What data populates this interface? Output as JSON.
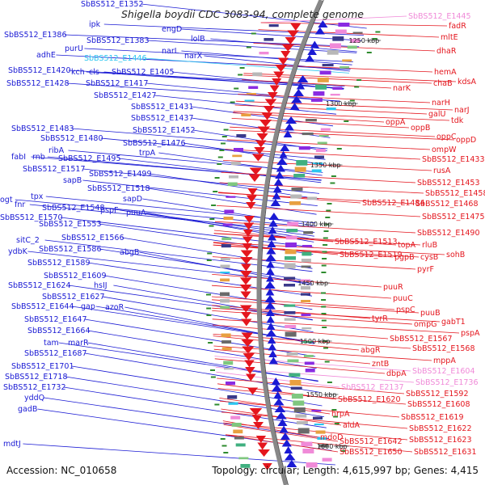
{
  "title": "Shigella boydii CDC 3083-94, complete genome",
  "footer": {
    "accession": "Accession: NC_010658",
    "summary": "Topology: circular; Length: 4,615,997 bp; Genes: 4,415"
  },
  "colors": {
    "minus_strand": "#1a1ad4",
    "plus_strand": "#e4161e",
    "rna": "#2bc6f0",
    "pseudo": "#f08ad8",
    "backbone": "#888888"
  },
  "ticks": [
    {
      "label": "1250 kbp"
    },
    {
      "label": "1300 kbp"
    },
    {
      "label": "1350 kbp"
    },
    {
      "label": "1400 kbp"
    },
    {
      "label": "1450 kbp"
    },
    {
      "label": "1500 kbp"
    },
    {
      "label": "1550 kbp"
    },
    {
      "label": "1600 kbp"
    }
  ],
  "left_labels": [
    {
      "text": "SbBS512_E1352",
      "kind": "gene"
    },
    {
      "text": "ipk",
      "kind": "gene"
    },
    {
      "text": "engD",
      "kind": "gene"
    },
    {
      "text": "SbBS512_E1386",
      "kind": "gene"
    },
    {
      "text": "SbBS512_E1383",
      "kind": "gene"
    },
    {
      "text": "lolB",
      "kind": "gene"
    },
    {
      "text": "purU",
      "kind": "gene"
    },
    {
      "text": "narL",
      "kind": "gene"
    },
    {
      "text": "adhE",
      "kind": "gene"
    },
    {
      "text": "SbBS512_E1446",
      "kind": "rna"
    },
    {
      "text": "narX",
      "kind": "gene"
    },
    {
      "text": "SbBS512_E1420",
      "kind": "gene"
    },
    {
      "text": "kch",
      "kind": "gene"
    },
    {
      "text": "cls",
      "kind": "gene"
    },
    {
      "text": "SbBS512_E1405",
      "kind": "gene"
    },
    {
      "text": "SbBS512_E1428",
      "kind": "gene"
    },
    {
      "text": "SbBS512_E1417",
      "kind": "gene"
    },
    {
      "text": "SbBS512_E1427",
      "kind": "gene"
    },
    {
      "text": "SbBS512_E1431",
      "kind": "gene"
    },
    {
      "text": "SbBS512_E1437",
      "kind": "gene"
    },
    {
      "text": "SbBS512_E1483",
      "kind": "gene"
    },
    {
      "text": "SbBS512_E1452",
      "kind": "gene"
    },
    {
      "text": "SbBS512_E1480",
      "kind": "gene"
    },
    {
      "text": "SbBS512_E1476",
      "kind": "gene"
    },
    {
      "text": "ribA",
      "kind": "gene"
    },
    {
      "text": "trpA",
      "kind": "gene"
    },
    {
      "text": "fabI",
      "kind": "gene"
    },
    {
      "text": "rnb",
      "kind": "gene"
    },
    {
      "text": "SbBS512_E1495",
      "kind": "gene"
    },
    {
      "text": "SbBS512_E1517",
      "kind": "gene"
    },
    {
      "text": "SbBS512_E1499",
      "kind": "gene"
    },
    {
      "text": "sapB",
      "kind": "gene"
    },
    {
      "text": "SbBS512_E1518",
      "kind": "gene"
    },
    {
      "text": "tpx",
      "kind": "gene"
    },
    {
      "text": "sapD",
      "kind": "gene"
    },
    {
      "text": "ogt",
      "kind": "gene"
    },
    {
      "text": "fnr",
      "kind": "gene"
    },
    {
      "text": "SbBS512_E1548",
      "kind": "gene"
    },
    {
      "text": "pspF",
      "kind": "gene"
    },
    {
      "text": "puuA",
      "kind": "gene"
    },
    {
      "text": "SbBS512_E1570",
      "kind": "gene"
    },
    {
      "text": "SbBS512_E1553",
      "kind": "gene"
    },
    {
      "text": "SbBS512_E1566",
      "kind": "gene"
    },
    {
      "text": "sitC_2",
      "kind": "gene"
    },
    {
      "text": "ydbK",
      "kind": "gene"
    },
    {
      "text": "SbBS512_E1586",
      "kind": "gene"
    },
    {
      "text": "abgB",
      "kind": "gene"
    },
    {
      "text": "SbBS512_E1589",
      "kind": "gene"
    },
    {
      "text": "SbBS512_E1609",
      "kind": "gene"
    },
    {
      "text": "SbBS512_E1624",
      "kind": "gene"
    },
    {
      "text": "hsIJ",
      "kind": "gene"
    },
    {
      "text": "SbBS512_E1627",
      "kind": "gene"
    },
    {
      "text": "SbBS512_E1644",
      "kind": "gene"
    },
    {
      "text": "gap",
      "kind": "gene"
    },
    {
      "text": "azoR",
      "kind": "gene"
    },
    {
      "text": "SbBS512_E1647",
      "kind": "gene"
    },
    {
      "text": "SbBS512_E1664",
      "kind": "gene"
    },
    {
      "text": "tam",
      "kind": "gene"
    },
    {
      "text": "marR",
      "kind": "gene"
    },
    {
      "text": "SbBS512_E1687",
      "kind": "gene"
    },
    {
      "text": "SbBS512_E1701",
      "kind": "gene"
    },
    {
      "text": "SbBS512_E1718",
      "kind": "gene"
    },
    {
      "text": "SbBS512_E1732",
      "kind": "gene"
    },
    {
      "text": "yddQ",
      "kind": "gene"
    },
    {
      "text": "gadB",
      "kind": "gene"
    },
    {
      "text": "mdtJ",
      "kind": "gene"
    }
  ],
  "right_labels": [
    {
      "text": "SbBS512_E1445",
      "kind": "pseudo"
    },
    {
      "text": "fadR",
      "kind": "gene"
    },
    {
      "text": "mltE",
      "kind": "gene"
    },
    {
      "text": "dhaR",
      "kind": "gene"
    },
    {
      "text": "hemA",
      "kind": "gene"
    },
    {
      "text": "chaB",
      "kind": "gene"
    },
    {
      "text": "kdsA",
      "kind": "gene"
    },
    {
      "text": "narK",
      "kind": "gene"
    },
    {
      "text": "narH",
      "kind": "gene"
    },
    {
      "text": "narJ",
      "kind": "gene"
    },
    {
      "text": "galU",
      "kind": "gene"
    },
    {
      "text": "tdk",
      "kind": "gene"
    },
    {
      "text": "oppA",
      "kind": "gene"
    },
    {
      "text": "oppB",
      "kind": "gene"
    },
    {
      "text": "oppC",
      "kind": "gene"
    },
    {
      "text": "oppD",
      "kind": "gene"
    },
    {
      "text": "ompW",
      "kind": "gene"
    },
    {
      "text": "SbBS512_E1433",
      "kind": "gene"
    },
    {
      "text": "rusA",
      "kind": "gene"
    },
    {
      "text": "SbBS512_E1453",
      "kind": "gene"
    },
    {
      "text": "SbBS512_E1458",
      "kind": "gene"
    },
    {
      "text": "SbBS512_E1484",
      "kind": "gene"
    },
    {
      "text": "SbBS512_E1468",
      "kind": "gene"
    },
    {
      "text": "SbBS512_E1475",
      "kind": "gene"
    },
    {
      "text": "SbBS512_E1490",
      "kind": "gene"
    },
    {
      "text": "SbBS512_E1513",
      "kind": "gene"
    },
    {
      "text": "topA",
      "kind": "gene"
    },
    {
      "text": "rluB",
      "kind": "gene"
    },
    {
      "text": "SbBS512_E1519",
      "kind": "gene"
    },
    {
      "text": "pgpB",
      "kind": "gene"
    },
    {
      "text": "cysB",
      "kind": "gene"
    },
    {
      "text": "sohB",
      "kind": "gene"
    },
    {
      "text": "pyrF",
      "kind": "gene"
    },
    {
      "text": "puuR",
      "kind": "gene"
    },
    {
      "text": "puuC",
      "kind": "gene"
    },
    {
      "text": "pspC",
      "kind": "gene"
    },
    {
      "text": "puuB",
      "kind": "gene"
    },
    {
      "text": "tyrR",
      "kind": "gene"
    },
    {
      "text": "ompG",
      "kind": "gene"
    },
    {
      "text": "gabT1",
      "kind": "gene"
    },
    {
      "text": "SbBS512_E1567",
      "kind": "gene"
    },
    {
      "text": "pspA",
      "kind": "gene"
    },
    {
      "text": "abgR",
      "kind": "gene"
    },
    {
      "text": "SbBS512_E1568",
      "kind": "gene"
    },
    {
      "text": "zntB",
      "kind": "gene"
    },
    {
      "text": "mppA",
      "kind": "gene"
    },
    {
      "text": "dbpA",
      "kind": "gene"
    },
    {
      "text": "SbBS512_E1604",
      "kind": "pseudo"
    },
    {
      "text": "SbBS512_E1736",
      "kind": "pseudo"
    },
    {
      "text": "SbBS512_E2137",
      "kind": "pseudo"
    },
    {
      "text": "SbBS512_E1592",
      "kind": "gene"
    },
    {
      "text": "SbBS512_E1620",
      "kind": "gene"
    },
    {
      "text": "SbBS512_E1608",
      "kind": "gene"
    },
    {
      "text": "hrpA",
      "kind": "gene"
    },
    {
      "text": "SbBS512_E1619",
      "kind": "gene"
    },
    {
      "text": "aldA",
      "kind": "gene"
    },
    {
      "text": "SbBS512_E1622",
      "kind": "gene"
    },
    {
      "text": "mdoD",
      "kind": "gene"
    },
    {
      "text": "SbBS512_E1642",
      "kind": "gene"
    },
    {
      "text": "SbBS512_E1623",
      "kind": "gene"
    },
    {
      "text": "SbBS512_E1650",
      "kind": "gene"
    },
    {
      "text": "SbBS512_E1631",
      "kind": "gene"
    }
  ]
}
